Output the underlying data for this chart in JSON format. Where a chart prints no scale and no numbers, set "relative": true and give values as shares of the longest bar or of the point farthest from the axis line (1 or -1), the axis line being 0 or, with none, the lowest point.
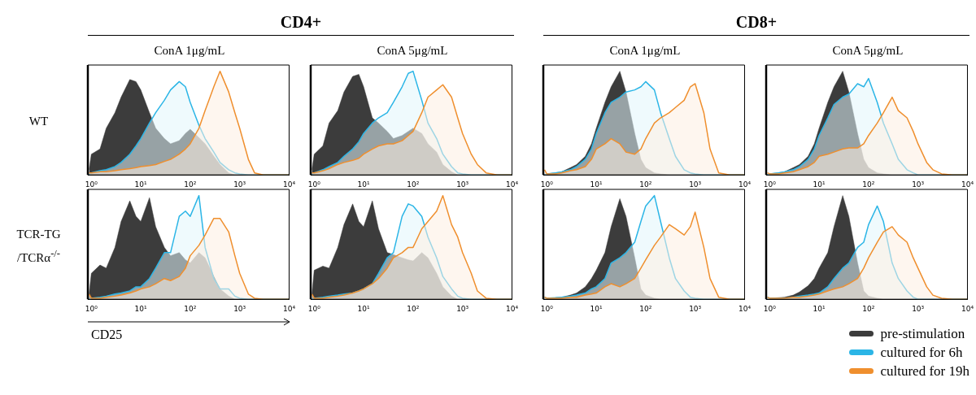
{
  "chart_data": [
    {
      "type": "area",
      "relative": true,
      "log": "x",
      "title": "ConA 1μg/mL",
      "ylabel": "WT",
      "annotations": [
        "CD4+"
      ],
      "x": [
        0.9,
        1,
        1.5,
        2,
        3,
        4,
        6,
        8,
        10,
        15,
        20,
        30,
        40,
        60,
        80,
        100,
        150,
        200,
        300,
        400,
        600,
        800,
        1000,
        1500,
        2000,
        3000,
        5000,
        10000
      ],
      "xlim": [
        0.85,
        10000
      ],
      "xticks": [
        {
          "value": 1,
          "label": "10⁰"
        },
        {
          "value": 10,
          "label": "10¹"
        },
        {
          "value": 100,
          "label": "10²"
        },
        {
          "value": 1000,
          "label": "10³"
        },
        {
          "value": 10000,
          "label": "10⁴"
        }
      ],
      "series": [
        {
          "color": "#3c3c3c",
          "values": [
            0.05,
            0.2,
            0.25,
            0.45,
            0.6,
            0.75,
            0.92,
            0.9,
            0.82,
            0.6,
            0.45,
            0.35,
            0.3,
            0.33,
            0.4,
            0.44,
            0.36,
            0.3,
            0.18,
            0.1,
            0.02,
            0,
            0,
            0,
            0,
            0,
            0,
            0
          ]
        },
        {
          "color": "#2bb5e6",
          "values": [
            0,
            0.02,
            0.04,
            0.05,
            0.08,
            0.12,
            0.2,
            0.28,
            0.35,
            0.5,
            0.6,
            0.72,
            0.82,
            0.9,
            0.85,
            0.7,
            0.48,
            0.35,
            0.22,
            0.12,
            0.05,
            0.02,
            0.01,
            0,
            0,
            0,
            0,
            0
          ]
        },
        {
          "color": "#ef8f2e",
          "values": [
            0.02,
            0.02,
            0.03,
            0.03,
            0.04,
            0.05,
            0.06,
            0.07,
            0.08,
            0.09,
            0.1,
            0.13,
            0.15,
            0.2,
            0.25,
            0.3,
            0.45,
            0.62,
            0.85,
            1,
            0.8,
            0.6,
            0.45,
            0.15,
            0.02,
            0,
            0,
            0
          ]
        }
      ]
    },
    {
      "type": "area",
      "relative": true,
      "log": "x",
      "title": "ConA 5μg/mL",
      "x": [
        0.9,
        1,
        1.5,
        2,
        3,
        4,
        6,
        8,
        10,
        15,
        20,
        30,
        40,
        60,
        80,
        100,
        150,
        200,
        300,
        400,
        600,
        800,
        1000,
        1500,
        2000,
        3000,
        5000,
        10000
      ],
      "xlim": [
        0.85,
        10000
      ],
      "xticks": [
        {
          "value": 1,
          "label": "10⁰"
        },
        {
          "value": 10,
          "label": "10¹"
        },
        {
          "value": 100,
          "label": "10²"
        },
        {
          "value": 1000,
          "label": "10³"
        },
        {
          "value": 10000,
          "label": "10⁴"
        }
      ],
      "series": [
        {
          "color": "#3c3c3c",
          "values": [
            0.05,
            0.2,
            0.28,
            0.5,
            0.62,
            0.8,
            0.95,
            0.97,
            0.85,
            0.55,
            0.5,
            0.42,
            0.35,
            0.38,
            0.42,
            0.45,
            0.4,
            0.3,
            0.22,
            0.1,
            0.03,
            0,
            0,
            0,
            0,
            0,
            0,
            0
          ]
        },
        {
          "color": "#2bb5e6",
          "values": [
            0,
            0.02,
            0.05,
            0.08,
            0.12,
            0.18,
            0.25,
            0.32,
            0.4,
            0.5,
            0.55,
            0.6,
            0.7,
            0.85,
            0.98,
            1,
            0.72,
            0.5,
            0.35,
            0.2,
            0.08,
            0.02,
            0.01,
            0,
            0,
            0,
            0,
            0
          ]
        },
        {
          "color": "#ef8f2e",
          "values": [
            0.02,
            0.02,
            0.04,
            0.06,
            0.1,
            0.12,
            0.14,
            0.16,
            0.2,
            0.25,
            0.28,
            0.3,
            0.3,
            0.33,
            0.38,
            0.42,
            0.6,
            0.75,
            0.82,
            0.87,
            0.75,
            0.55,
            0.4,
            0.2,
            0.1,
            0.02,
            0,
            0
          ]
        }
      ]
    },
    {
      "type": "area",
      "relative": true,
      "log": "x",
      "title": "ConA 1μg/mL",
      "annotations": [
        "CD8+"
      ],
      "x": [
        0.9,
        1,
        1.5,
        2,
        3,
        4,
        6,
        8,
        10,
        15,
        20,
        30,
        40,
        60,
        80,
        100,
        150,
        200,
        300,
        400,
        600,
        800,
        1000,
        1500,
        2000,
        3000,
        5000,
        10000
      ],
      "xlim": [
        0.85,
        10000
      ],
      "xticks": [
        {
          "value": 1,
          "label": "10⁰"
        },
        {
          "value": 10,
          "label": "10¹"
        },
        {
          "value": 100,
          "label": "10²"
        },
        {
          "value": 1000,
          "label": "10³"
        },
        {
          "value": 10000,
          "label": "10⁴"
        }
      ],
      "series": [
        {
          "color": "#3c3c3c",
          "values": [
            0,
            0.01,
            0.02,
            0.03,
            0.07,
            0.1,
            0.18,
            0.3,
            0.45,
            0.7,
            0.85,
            1,
            0.8,
            0.4,
            0.15,
            0.07,
            0.02,
            0.01,
            0,
            0,
            0,
            0,
            0,
            0,
            0,
            0,
            0,
            0
          ]
        },
        {
          "color": "#2bb5e6",
          "values": [
            0,
            0.01,
            0.02,
            0.03,
            0.05,
            0.08,
            0.15,
            0.25,
            0.4,
            0.6,
            0.7,
            0.75,
            0.8,
            0.82,
            0.85,
            0.9,
            0.82,
            0.6,
            0.35,
            0.18,
            0.05,
            0.02,
            0.01,
            0,
            0,
            0,
            0,
            0
          ]
        },
        {
          "color": "#ef8f2e",
          "values": [
            0.05,
            0.01,
            0.01,
            0.02,
            0.04,
            0.05,
            0.08,
            0.15,
            0.25,
            0.3,
            0.35,
            0.3,
            0.22,
            0.2,
            0.25,
            0.35,
            0.5,
            0.55,
            0.6,
            0.65,
            0.72,
            0.85,
            0.88,
            0.6,
            0.25,
            0.02,
            0,
            0
          ]
        }
      ]
    },
    {
      "type": "area",
      "relative": true,
      "log": "x",
      "title": "ConA 5μg/mL",
      "x": [
        0.9,
        1,
        1.5,
        2,
        3,
        4,
        6,
        8,
        10,
        15,
        20,
        30,
        40,
        60,
        80,
        100,
        150,
        200,
        300,
        400,
        600,
        800,
        1000,
        1500,
        2000,
        3000,
        5000,
        10000
      ],
      "xlim": [
        0.85,
        10000
      ],
      "xticks": [
        {
          "value": 1,
          "label": "10⁰"
        },
        {
          "value": 10,
          "label": "10¹"
        },
        {
          "value": 100,
          "label": "10²"
        },
        {
          "value": 1000,
          "label": "10³"
        },
        {
          "value": 10000,
          "label": "10⁴"
        }
      ],
      "series": [
        {
          "color": "#3c3c3c",
          "values": [
            0,
            0.01,
            0.02,
            0.03,
            0.07,
            0.1,
            0.18,
            0.3,
            0.45,
            0.7,
            0.85,
            1,
            0.8,
            0.4,
            0.15,
            0.07,
            0.02,
            0.01,
            0,
            0,
            0,
            0,
            0,
            0,
            0,
            0,
            0,
            0
          ]
        },
        {
          "color": "#2bb5e6",
          "values": [
            0,
            0.01,
            0.02,
            0.03,
            0.05,
            0.08,
            0.15,
            0.25,
            0.38,
            0.55,
            0.68,
            0.75,
            0.78,
            0.88,
            0.85,
            0.93,
            0.7,
            0.5,
            0.3,
            0.15,
            0.05,
            0.02,
            0,
            0,
            0,
            0,
            0,
            0
          ]
        },
        {
          "color": "#ef8f2e",
          "values": [
            0.02,
            0.01,
            0.01,
            0.02,
            0.03,
            0.05,
            0.08,
            0.12,
            0.18,
            0.2,
            0.22,
            0.25,
            0.26,
            0.26,
            0.3,
            0.38,
            0.5,
            0.6,
            0.75,
            0.62,
            0.55,
            0.42,
            0.3,
            0.12,
            0.05,
            0.01,
            0,
            0
          ]
        }
      ]
    },
    {
      "type": "area",
      "relative": true,
      "log": "x",
      "ylabel": "TCR-TG /TCRα$^{-/-}$",
      "xlabel": "CD25",
      "x": [
        0.9,
        1,
        1.5,
        2,
        3,
        4,
        6,
        8,
        10,
        15,
        20,
        30,
        40,
        60,
        80,
        100,
        150,
        200,
        300,
        400,
        600,
        800,
        1000,
        1500,
        2000,
        3000,
        5000,
        10000
      ],
      "xlim": [
        0.85,
        10000
      ],
      "xticks": [
        {
          "value": 1,
          "label": "10⁰"
        },
        {
          "value": 10,
          "label": "10¹"
        },
        {
          "value": 100,
          "label": "10²"
        },
        {
          "value": 1000,
          "label": "10³"
        },
        {
          "value": 10000,
          "label": "10⁴"
        }
      ],
      "series": [
        {
          "color": "#3c3c3c",
          "values": [
            0.05,
            0.25,
            0.33,
            0.3,
            0.5,
            0.75,
            0.95,
            0.8,
            0.75,
            0.98,
            0.7,
            0.5,
            0.42,
            0.45,
            0.38,
            0.35,
            0.45,
            0.4,
            0.22,
            0.1,
            0.03,
            0,
            0,
            0,
            0,
            0,
            0,
            0
          ]
        },
        {
          "color": "#2bb5e6",
          "values": [
            0,
            0.01,
            0.02,
            0.03,
            0.05,
            0.06,
            0.08,
            0.12,
            0.12,
            0.2,
            0.3,
            0.45,
            0.45,
            0.8,
            0.85,
            0.8,
            1,
            0.5,
            0.2,
            0.1,
            0.1,
            0.03,
            0.01,
            0,
            0,
            0,
            0,
            0
          ]
        },
        {
          "color": "#ef8f2e",
          "values": [
            0.05,
            0.01,
            0.01,
            0.02,
            0.03,
            0.04,
            0.06,
            0.08,
            0.1,
            0.12,
            0.15,
            0.2,
            0.18,
            0.22,
            0.3,
            0.42,
            0.52,
            0.62,
            0.78,
            0.78,
            0.65,
            0.42,
            0.25,
            0.05,
            0.01,
            0,
            0,
            0
          ]
        }
      ]
    },
    {
      "type": "area",
      "relative": true,
      "log": "x",
      "x": [
        0.9,
        1,
        1.5,
        2,
        3,
        4,
        6,
        8,
        10,
        15,
        20,
        30,
        40,
        60,
        80,
        100,
        150,
        200,
        300,
        400,
        600,
        800,
        1000,
        1500,
        2000,
        3000,
        5000,
        10000
      ],
      "xlim": [
        0.85,
        10000
      ],
      "xticks": [
        {
          "value": 1,
          "label": "10⁰"
        },
        {
          "value": 10,
          "label": "10¹"
        },
        {
          "value": 100,
          "label": "10²"
        },
        {
          "value": 1000,
          "label": "10³"
        },
        {
          "value": 10000,
          "label": "10⁴"
        }
      ],
      "series": [
        {
          "color": "#3c3c3c",
          "values": [
            0.05,
            0.28,
            0.32,
            0.3,
            0.5,
            0.72,
            0.92,
            0.75,
            0.7,
            0.95,
            0.68,
            0.45,
            0.43,
            0.4,
            0.38,
            0.37,
            0.45,
            0.4,
            0.25,
            0.12,
            0.03,
            0,
            0,
            0,
            0,
            0,
            0,
            0
          ]
        },
        {
          "color": "#2bb5e6",
          "values": [
            0,
            0.01,
            0.02,
            0.03,
            0.04,
            0.05,
            0.06,
            0.08,
            0.1,
            0.15,
            0.25,
            0.4,
            0.45,
            0.8,
            0.92,
            0.9,
            0.8,
            0.6,
            0.4,
            0.22,
            0.1,
            0.03,
            0.01,
            0,
            0,
            0,
            0,
            0
          ]
        },
        {
          "color": "#ef8f2e",
          "values": [
            0.05,
            0.01,
            0.01,
            0.02,
            0.03,
            0.04,
            0.06,
            0.08,
            0.1,
            0.15,
            0.2,
            0.3,
            0.4,
            0.45,
            0.5,
            0.5,
            0.68,
            0.75,
            0.85,
            1,
            0.72,
            0.6,
            0.45,
            0.25,
            0.08,
            0.01,
            0,
            0
          ]
        }
      ]
    },
    {
      "type": "area",
      "relative": true,
      "log": "x",
      "x": [
        0.9,
        1,
        1.5,
        2,
        3,
        4,
        6,
        8,
        10,
        15,
        20,
        30,
        40,
        60,
        80,
        100,
        150,
        200,
        300,
        400,
        600,
        800,
        1000,
        1500,
        2000,
        3000,
        5000,
        10000
      ],
      "xlim": [
        0.85,
        10000
      ],
      "xticks": [
        {
          "value": 1,
          "label": "10⁰"
        },
        {
          "value": 10,
          "label": "10¹"
        },
        {
          "value": 100,
          "label": "10²"
        },
        {
          "value": 1000,
          "label": "10³"
        },
        {
          "value": 10000,
          "label": "10⁴"
        }
      ],
      "series": [
        {
          "color": "#3c3c3c",
          "values": [
            0,
            0.01,
            0.015,
            0.02,
            0.04,
            0.06,
            0.12,
            0.2,
            0.28,
            0.45,
            0.7,
            0.97,
            0.8,
            0.4,
            0.1,
            0.04,
            0.01,
            0,
            0,
            0,
            0,
            0,
            0,
            0,
            0,
            0,
            0,
            0
          ]
        },
        {
          "color": "#2bb5e6",
          "values": [
            0.02,
            0.01,
            0.015,
            0.02,
            0.03,
            0.04,
            0.06,
            0.1,
            0.12,
            0.2,
            0.35,
            0.4,
            0.45,
            0.55,
            0.75,
            0.9,
            1,
            0.75,
            0.4,
            0.2,
            0.08,
            0.02,
            0.01,
            0,
            0,
            0,
            0,
            0
          ]
        },
        {
          "color": "#ef8f2e",
          "values": [
            0.02,
            0.01,
            0.01,
            0.01,
            0.02,
            0.02,
            0.04,
            0.05,
            0.06,
            0.12,
            0.15,
            0.12,
            0.15,
            0.2,
            0.3,
            0.38,
            0.52,
            0.6,
            0.72,
            0.68,
            0.62,
            0.7,
            0.84,
            0.5,
            0.2,
            0.02,
            0,
            0
          ]
        }
      ]
    },
    {
      "type": "area",
      "relative": true,
      "log": "x",
      "legend": "bottom right",
      "x": [
        0.9,
        1,
        1.5,
        2,
        3,
        4,
        6,
        8,
        10,
        15,
        20,
        30,
        40,
        60,
        80,
        100,
        150,
        200,
        300,
        400,
        600,
        800,
        1000,
        1500,
        2000,
        3000,
        5000,
        10000
      ],
      "xlim": [
        0.85,
        10000
      ],
      "xticks": [
        {
          "value": 1,
          "label": "10⁰"
        },
        {
          "value": 10,
          "label": "10¹"
        },
        {
          "value": 100,
          "label": "10²"
        },
        {
          "value": 1000,
          "label": "10³"
        },
        {
          "value": 10000,
          "label": "10⁴"
        }
      ],
      "series": [
        {
          "name": "pre-stimulation",
          "color": "#3c3c3c",
          "values": [
            0,
            0.01,
            0.015,
            0.02,
            0.04,
            0.07,
            0.13,
            0.2,
            0.3,
            0.45,
            0.7,
            1,
            0.8,
            0.35,
            0.08,
            0.03,
            0.01,
            0,
            0,
            0,
            0,
            0,
            0,
            0,
            0,
            0,
            0,
            0
          ]
        },
        {
          "name": "cultured for 6h",
          "color": "#2bb5e6",
          "values": [
            0.02,
            0.01,
            0.01,
            0.01,
            0.02,
            0.03,
            0.04,
            0.05,
            0.06,
            0.12,
            0.2,
            0.3,
            0.35,
            0.5,
            0.55,
            0.72,
            0.9,
            0.75,
            0.35,
            0.2,
            0.08,
            0.02,
            0,
            0,
            0,
            0,
            0,
            0
          ]
        },
        {
          "name": "cultured for 19h",
          "color": "#ef8f2e",
          "values": [
            0.02,
            0.01,
            0.01,
            0.01,
            0.02,
            0.02,
            0.03,
            0.04,
            0.05,
            0.08,
            0.1,
            0.12,
            0.15,
            0.2,
            0.3,
            0.4,
            0.55,
            0.65,
            0.7,
            0.62,
            0.55,
            0.4,
            0.3,
            0.12,
            0.04,
            0.01,
            0,
            0
          ]
        }
      ]
    }
  ]
}
